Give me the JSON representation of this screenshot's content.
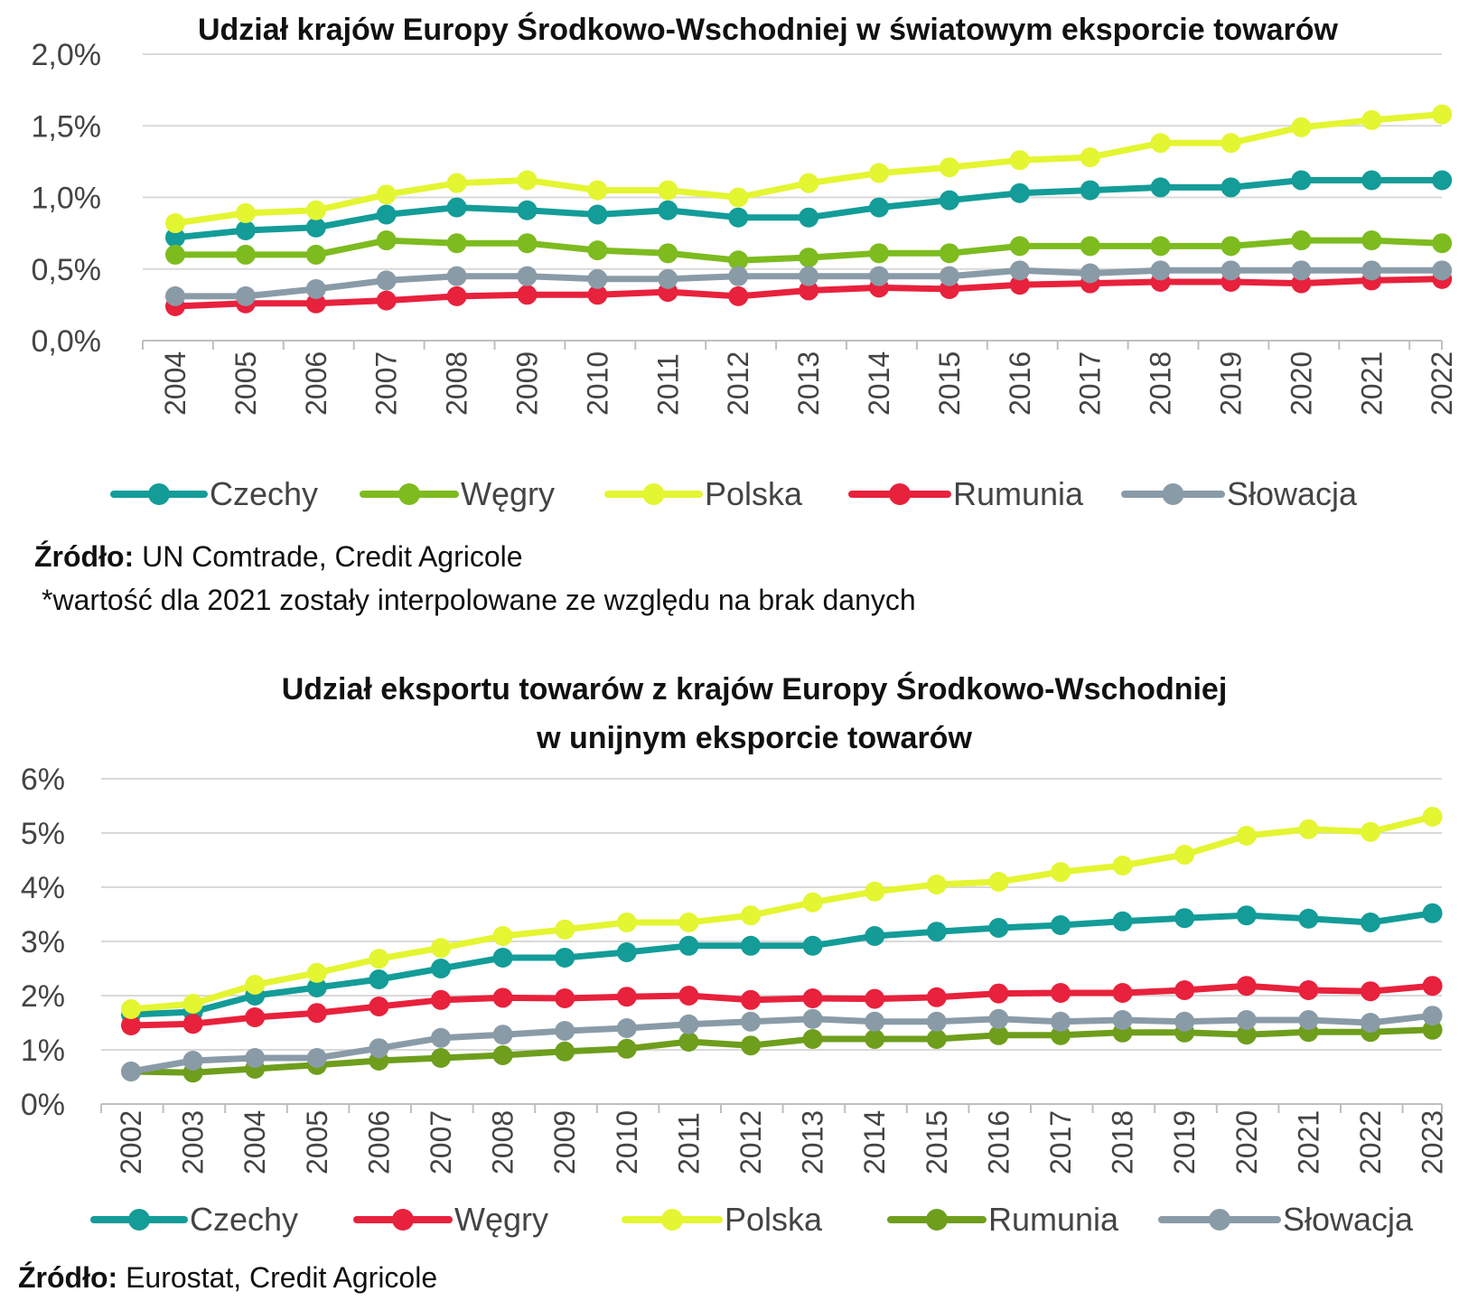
{
  "chart_data": [
    {
      "type": "line",
      "title": "Udział krajów Europy Środkowo-Wschodniej  w światowym eksporcie towarów",
      "x": [
        "2004",
        "2005",
        "2006",
        "2007",
        "2008",
        "2009",
        "2010",
        "2011",
        "2012",
        "2013",
        "2014",
        "2015",
        "2016",
        "2017",
        "2018",
        "2019",
        "2020",
        "2021",
        "2022"
      ],
      "ylim": [
        0,
        0.02
      ],
      "yticks": [
        0,
        0.005,
        0.01,
        0.015,
        0.02
      ],
      "ytick_labels": [
        "0,0%",
        "0,5%",
        "1,0%",
        "1,5%",
        "2,0%"
      ],
      "series": [
        {
          "name": "Czechy",
          "color": "#139c98",
          "values": [
            0.0072,
            0.0077,
            0.0079,
            0.0088,
            0.0093,
            0.0091,
            0.0088,
            0.0091,
            0.0086,
            0.0086,
            0.0093,
            0.0098,
            0.0103,
            0.0105,
            0.0107,
            0.0107,
            0.0112,
            0.0112,
            0.0112
          ]
        },
        {
          "name": "Węgry",
          "color": "#7dbb1f",
          "values": [
            0.006,
            0.006,
            0.006,
            0.007,
            0.0068,
            0.0068,
            0.0063,
            0.0061,
            0.0056,
            0.0058,
            0.0061,
            0.0061,
            0.0066,
            0.0066,
            0.0066,
            0.0066,
            0.007,
            0.007,
            0.0068
          ]
        },
        {
          "name": "Polska",
          "color": "#e4f531",
          "values": [
            0.0082,
            0.0089,
            0.0091,
            0.0102,
            0.011,
            0.0112,
            0.0105,
            0.0105,
            0.01,
            0.011,
            0.0117,
            0.0121,
            0.0126,
            0.0128,
            0.0138,
            0.0138,
            0.0149,
            0.0154,
            0.0158
          ]
        },
        {
          "name": "Rumunia",
          "color": "#e8213c",
          "values": [
            0.0024,
            0.0026,
            0.0026,
            0.0028,
            0.0031,
            0.0032,
            0.0032,
            0.0034,
            0.0031,
            0.0035,
            0.0037,
            0.0036,
            0.0039,
            0.004,
            0.0041,
            0.0041,
            0.004,
            0.0042,
            0.0043
          ]
        },
        {
          "name": "Słowacja",
          "color": "#8a9ba8",
          "values": [
            0.0031,
            0.0031,
            0.0036,
            0.0042,
            0.0045,
            0.0045,
            0.0043,
            0.0043,
            0.0045,
            0.0045,
            0.0045,
            0.0045,
            0.0049,
            0.0047,
            0.0049,
            0.0049,
            0.0049,
            0.0049,
            0.0049
          ]
        }
      ]
    },
    {
      "type": "line",
      "title": "Udział eksportu towarów z krajów Europy Środkowo-Wschodniej",
      "subtitle": "w unijnym eksporcie towarów",
      "x": [
        "2002",
        "2003",
        "2004",
        "2005",
        "2006",
        "2007",
        "2008",
        "2009",
        "2010",
        "2011",
        "2012",
        "2013",
        "2014",
        "2015",
        "2016",
        "2017",
        "2018",
        "2019",
        "2020",
        "2021",
        "2022",
        "2023"
      ],
      "ylim": [
        0,
        0.06
      ],
      "yticks": [
        0,
        0.01,
        0.02,
        0.03,
        0.04,
        0.05,
        0.06
      ],
      "ytick_labels": [
        "0%",
        "1%",
        "2%",
        "3%",
        "4%",
        "5%",
        "6%"
      ],
      "series": [
        {
          "name": "Czechy",
          "color": "#139c98",
          "values": [
            0.0165,
            0.017,
            0.02,
            0.0215,
            0.023,
            0.025,
            0.027,
            0.027,
            0.028,
            0.0292,
            0.0292,
            0.0292,
            0.031,
            0.0318,
            0.0325,
            0.033,
            0.0337,
            0.0343,
            0.0348,
            0.0342,
            0.0335,
            0.0352
          ]
        },
        {
          "name": "Węgry",
          "color": "#e8213c",
          "values": [
            0.0145,
            0.0148,
            0.016,
            0.0168,
            0.018,
            0.0192,
            0.0196,
            0.0195,
            0.0198,
            0.02,
            0.0192,
            0.0195,
            0.0194,
            0.0197,
            0.0204,
            0.0205,
            0.0205,
            0.021,
            0.0218,
            0.021,
            0.0208,
            0.0218
          ]
        },
        {
          "name": "Polska",
          "color": "#e4f531",
          "values": [
            0.0175,
            0.0185,
            0.022,
            0.0242,
            0.0268,
            0.0288,
            0.031,
            0.0322,
            0.0335,
            0.0335,
            0.0348,
            0.0372,
            0.0392,
            0.0405,
            0.041,
            0.0428,
            0.044,
            0.046,
            0.0495,
            0.0507,
            0.0502,
            0.053
          ]
        },
        {
          "name": "Rumunia",
          "color": "#6e9e1c",
          "values": [
            0.006,
            0.0058,
            0.0065,
            0.0072,
            0.008,
            0.0085,
            0.009,
            0.0097,
            0.0102,
            0.0115,
            0.0108,
            0.012,
            0.012,
            0.012,
            0.0127,
            0.0127,
            0.0132,
            0.0132,
            0.0128,
            0.0133,
            0.0133,
            0.0137
          ]
        },
        {
          "name": "Słowacja",
          "color": "#8a9ba8",
          "values": [
            0.006,
            0.008,
            0.0085,
            0.0085,
            0.0103,
            0.0122,
            0.0128,
            0.0135,
            0.014,
            0.0147,
            0.0152,
            0.0157,
            0.0152,
            0.0152,
            0.0157,
            0.0152,
            0.0155,
            0.0152,
            0.0155,
            0.0155,
            0.015,
            0.0163
          ]
        }
      ]
    }
  ],
  "notes": {
    "top_source_label": "Źródło:",
    "top_source_text": " UN Comtrade, Credit Agricole",
    "top_footnote": "*wartość dla 2021 zostały interpolowane ze względu na brak danych",
    "bottom_source_label": "Źródło:",
    "bottom_source_text": " Eurostat, Credit Agricole"
  }
}
